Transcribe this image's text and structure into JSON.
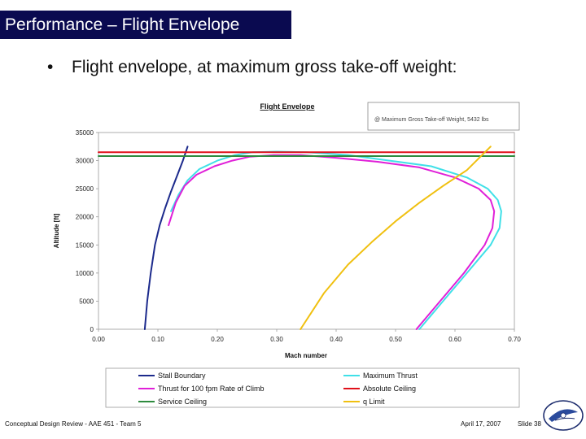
{
  "slide": {
    "title": "Performance – Flight Envelope",
    "bullet_symbol": "•",
    "bullet_text": "Flight envelope, at maximum gross take-off weight:",
    "footer_left": "Conceptual Design Review - AAE 451 - Team 5",
    "footer_date": "April 17, 2007",
    "footer_slide": "Slide 38"
  },
  "chart_data": {
    "type": "line",
    "title": "Flight Envelope",
    "annotation": "@ Maximum Gross Take-off Weight, 5432 lbs",
    "xlabel": "Mach number",
    "ylabel": "Altitude [ft]",
    "xlim": [
      0.0,
      0.7
    ],
    "ylim": [
      0,
      35000
    ],
    "xticks": [
      "0.00",
      "0.10",
      "0.20",
      "0.30",
      "0.40",
      "0.50",
      "0.60",
      "0.70"
    ],
    "yticks": [
      "0",
      "5000",
      "10000",
      "15000",
      "20000",
      "25000",
      "30000",
      "35000"
    ],
    "legend_position": "bottom",
    "series": [
      {
        "name": "Stall Boundary",
        "color": "#1c2a8c",
        "x": [
          0.078,
          0.082,
          0.088,
          0.095,
          0.103,
          0.112,
          0.122,
          0.133,
          0.142,
          0.15
        ],
        "y": [
          0,
          5000,
          10000,
          15000,
          18500,
          21500,
          24500,
          27500,
          30000,
          32500
        ]
      },
      {
        "name": "Maximum Thrust",
        "color": "#40e0e8",
        "x": [
          0.54,
          0.58,
          0.62,
          0.66,
          0.675,
          0.678,
          0.672,
          0.655,
          0.62,
          0.56,
          0.49,
          0.42,
          0.35,
          0.3,
          0.26,
          0.23,
          0.2,
          0.17,
          0.15,
          0.135,
          0.122
        ],
        "y": [
          0,
          5000,
          10000,
          15000,
          18000,
          21000,
          23000,
          25000,
          27000,
          29000,
          30000,
          31000,
          31500,
          31600,
          31500,
          31000,
          30000,
          28500,
          26500,
          24000,
          21000
        ]
      },
      {
        "name": "Thrust for 100 fpm Rate of Climb",
        "color": "#e020d8",
        "x": [
          0.535,
          0.575,
          0.615,
          0.65,
          0.663,
          0.666,
          0.66,
          0.64,
          0.6,
          0.54,
          0.47,
          0.4,
          0.34,
          0.295,
          0.255,
          0.225,
          0.195,
          0.165,
          0.145,
          0.13,
          0.118
        ],
        "y": [
          0,
          5000,
          10000,
          15000,
          18000,
          21000,
          23000,
          25000,
          27000,
          28800,
          29800,
          30500,
          31000,
          31000,
          30700,
          30000,
          29000,
          27500,
          25500,
          22500,
          18500
        ]
      },
      {
        "name": "Service Ceiling",
        "color": "#2e8b3e",
        "x": [
          0.0,
          0.7
        ],
        "y": [
          30800,
          30800
        ]
      },
      {
        "name": "Absolute Ceiling",
        "color": "#e0101a",
        "x": [
          0.0,
          0.7
        ],
        "y": [
          31500,
          31500
        ]
      },
      {
        "name": "q Limit",
        "color": "#f0c010",
        "x": [
          0.34,
          0.38,
          0.42,
          0.46,
          0.5,
          0.54,
          0.58,
          0.62,
          0.66
        ],
        "y": [
          0,
          6500,
          11500,
          15500,
          19200,
          22500,
          25500,
          28300,
          32500
        ]
      }
    ]
  }
}
